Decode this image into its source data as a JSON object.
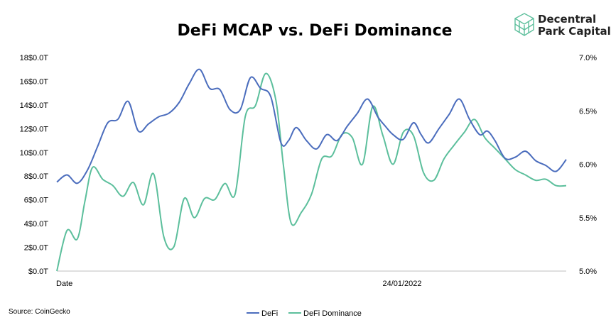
{
  "brand": {
    "line1": "Decentral",
    "line2": "Park Capital",
    "logo_color": "#5dbf9c"
  },
  "chart_data": {
    "type": "line",
    "title": "DeFi MCAP vs. DeFi Dominance",
    "source": "Source: CoinGecko",
    "x_tick_labels": [
      "Date",
      "24/01/2022"
    ],
    "y_left": {
      "ticks": [
        0,
        20,
        40,
        60,
        80,
        100,
        120,
        140,
        160,
        180
      ],
      "tick_labels": [
        "$0.0T",
        "2$0.0T",
        "4$0.0T",
        "6$0.0T",
        "8$0.0T",
        "10$0.0T",
        "12$0.0T",
        "14$0.0T",
        "16$0.0T",
        "18$0.0T"
      ],
      "range": [
        0,
        180
      ]
    },
    "y_right": {
      "ticks": [
        5.0,
        5.5,
        6.0,
        6.5,
        7.0
      ],
      "tick_labels": [
        "5.0%",
        "5.5%",
        "6.0%",
        "6.5%",
        "7.0%"
      ],
      "range": [
        5.0,
        7.0
      ]
    },
    "x_range": [
      0,
      100
    ],
    "series": [
      {
        "name": "DeFi",
        "axis": "left",
        "color": "#4b6dbd",
        "x": [
          0,
          2,
          4,
          6,
          8,
          10,
          12,
          14,
          16,
          18,
          20,
          22,
          24,
          26,
          28,
          30,
          32,
          34,
          36,
          38,
          40,
          42,
          44,
          45.5,
          47,
          49,
          51,
          53,
          55,
          57,
          59,
          61,
          63,
          64.5,
          66,
          68,
          70,
          71.5,
          73,
          75,
          77,
          79,
          81,
          83,
          84.5,
          86,
          88,
          90,
          92,
          94,
          96,
          98,
          100
        ],
        "values": [
          75,
          81,
          74,
          85,
          105,
          125,
          128,
          143,
          118,
          124,
          130,
          133,
          142,
          158,
          170,
          154,
          153,
          136,
          136,
          163,
          154,
          147,
          108,
          110,
          121,
          110,
          103,
          115,
          110,
          122,
          133,
          145,
          130,
          122,
          115,
          111,
          125,
          115,
          108,
          120,
          132,
          145,
          128,
          115,
          118,
          110,
          95,
          96,
          101,
          93,
          89,
          84,
          94
        ]
      },
      {
        "name": "DeFi Dominance",
        "axis": "right",
        "color": "#5cbf9c",
        "x": [
          0,
          2,
          4,
          5.5,
          7,
          9,
          11,
          13,
          15,
          17,
          19,
          21,
          23,
          25,
          27,
          29,
          31,
          33,
          35,
          37,
          39,
          41,
          43,
          44.5,
          46,
          48,
          50,
          52,
          54,
          56,
          58,
          60,
          62,
          64,
          66,
          68,
          70,
          72,
          74,
          76,
          78,
          80,
          82,
          84,
          86,
          88,
          90,
          92,
          94,
          96,
          98,
          100
        ],
        "values": [
          5.0,
          5.38,
          5.3,
          5.65,
          5.97,
          5.86,
          5.8,
          5.7,
          5.83,
          5.62,
          5.91,
          5.32,
          5.23,
          5.68,
          5.5,
          5.68,
          5.67,
          5.82,
          5.72,
          6.45,
          6.55,
          6.85,
          6.6,
          5.98,
          5.45,
          5.55,
          5.72,
          6.05,
          6.08,
          6.28,
          6.25,
          6.0,
          6.54,
          6.27,
          6.0,
          6.3,
          6.27,
          5.92,
          5.85,
          6.05,
          6.18,
          6.3,
          6.42,
          6.25,
          6.15,
          6.05,
          5.95,
          5.9,
          5.85,
          5.86,
          5.8,
          5.8
        ]
      }
    ],
    "legend": [
      "DeFi",
      "DeFi Dominance"
    ],
    "legend_position": "bottom",
    "grid": false
  }
}
